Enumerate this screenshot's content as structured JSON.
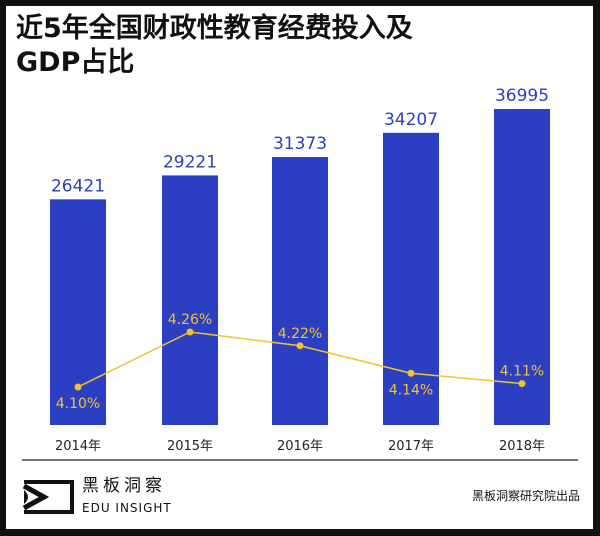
{
  "chart_data": {
    "type": "bar",
    "title": "近5年全国财政性教育经费投入及GDP占比",
    "categories": [
      "2014年",
      "2015年",
      "2016年",
      "2017年",
      "2018年"
    ],
    "series": [
      {
        "type": "bar",
        "values": [
          26421,
          29221,
          31373,
          34207,
          36995
        ],
        "color": "#2b3fc2"
      },
      {
        "type": "line",
        "values": [
          4.1,
          4.26,
          4.22,
          4.14,
          4.11
        ],
        "labels": [
          "4.10%",
          "4.26%",
          "4.22%",
          "4.14%",
          "4.11%"
        ],
        "color": "#f3c22f"
      }
    ],
    "xlabel": "",
    "ylabel": "",
    "grid": false
  },
  "brand": {
    "name_cn": "黑板洞察",
    "name_en": "EDU INSIGHT",
    "credit": "黑板洞察研究院出品"
  }
}
